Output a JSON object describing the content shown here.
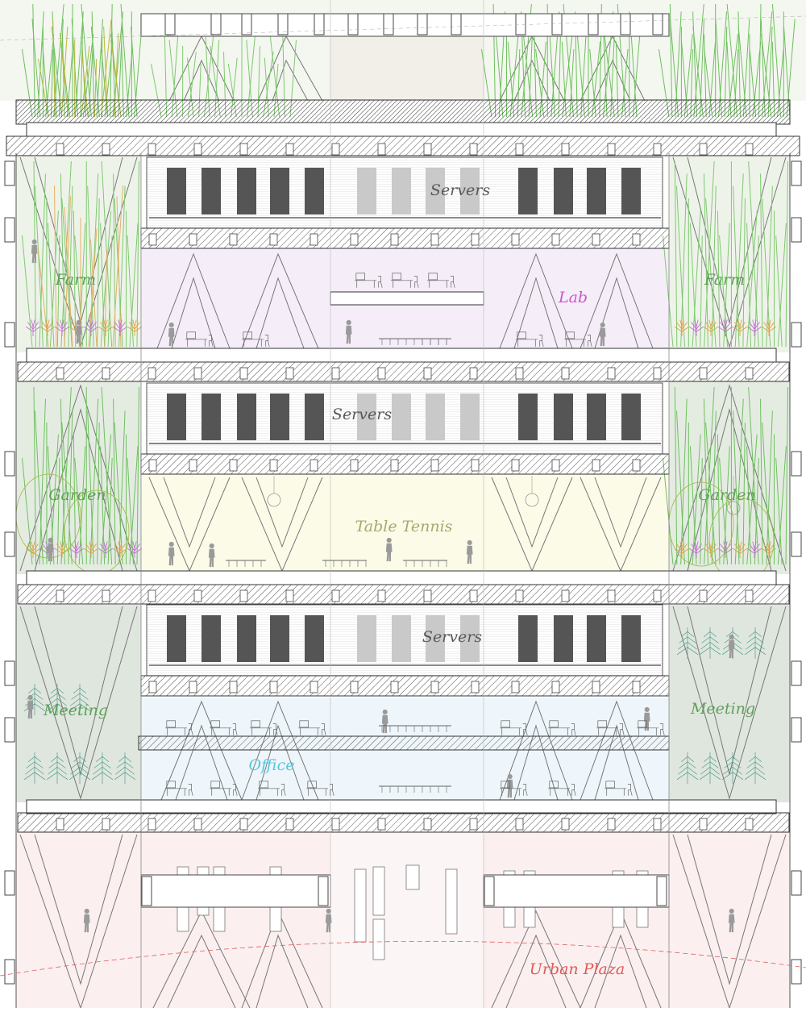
{
  "labels": {
    "servers_1": "Servers",
    "servers_2": "Servers",
    "servers_3": "Servers",
    "farm_left": "Farm",
    "farm_right": "Farm",
    "lab": "Lab",
    "garden_left": "Garden",
    "garden_right": "Garden",
    "table_tennis": "Table Tennis",
    "meeting_left": "Meeting",
    "meeting_right": "Meeting",
    "office": "Office",
    "urban_plaza": "Urban Plaza"
  },
  "colors": {
    "farm": "#5fa05a",
    "lab": "#cc55cc",
    "garden": "#5fa05a",
    "table_tennis": "#a8a870",
    "meeting": "#5fa05a",
    "office": "#55c8e0",
    "urban_plaza": "#e05a5a",
    "servers": "#595959",
    "lab_tint": "#f5eef8",
    "tennis_tint": "#fbfbe8",
    "office_tint": "#eef6fb",
    "plaza_tint": "#fbeeee",
    "green_tint": "#e4ece2",
    "rack": "#555555",
    "structure": "#444444"
  },
  "icons": [
    "tree-icon",
    "plant-icon",
    "person-icon",
    "server-rack-icon",
    "desk-icon"
  ]
}
